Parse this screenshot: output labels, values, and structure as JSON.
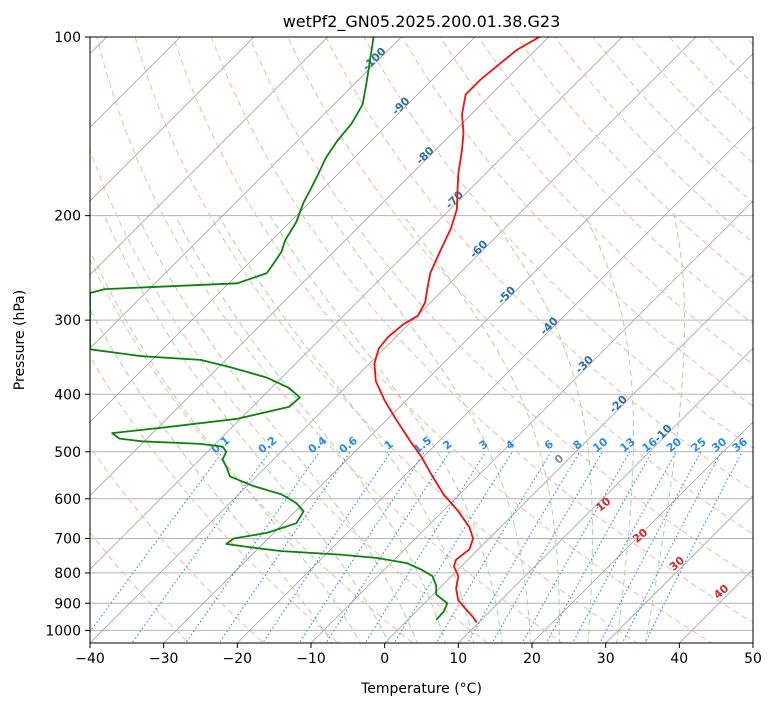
{
  "chart_data": {
    "type": "line",
    "title": "wetPf2_GN05.2025.200.01.38.G23",
    "xlabel": "Temperature (°C)",
    "ylabel": "Pressure (hPa)",
    "xlim": [
      -40,
      50
    ],
    "ylim": [
      1050,
      100
    ],
    "y_scale": "log",
    "x_ticks": [
      "−40",
      "−30",
      "−20",
      "−10",
      "0",
      "10",
      "20",
      "30",
      "40",
      "50"
    ],
    "y_ticks": [
      "100",
      "200",
      "300",
      "400",
      "500",
      "600",
      "700",
      "800",
      "900",
      "1000"
    ],
    "grid": true,
    "series": [
      {
        "role": "temperature",
        "color": "#ee1111",
        "x": [
          12.5,
          12.0,
          11.0,
          10.0,
          9.7,
          10.0,
          9.4,
          9.7,
          11.5,
          12.0,
          11.5,
          10.0,
          8.0,
          6.5,
          5.0,
          3.5,
          2.5,
          1.5,
          0.0,
          -1.2,
          -1.4,
          -0.8,
          0.5,
          2.5,
          4.5,
          5.5,
          5.8,
          6.2,
          7.5,
          9.0,
          9.8,
          9.9,
          10.0,
          10.5,
          10.7,
          10.5,
          11.0,
          13.0,
          16.0,
          18.0,
          21.0
        ],
        "y": [
          970,
          950,
          920,
          890,
          850,
          810,
          780,
          760,
          730,
          700,
          670,
          630,
          590,
          550,
          510,
          480,
          460,
          440,
          410,
          380,
          355,
          335,
          320,
          305,
          295,
          280,
          265,
          250,
          230,
          210,
          195,
          180,
          170,
          155,
          145,
          135,
          125,
          118,
          110,
          105,
          100
        ]
      },
      {
        "role": "dewpoint",
        "color": "#0d800d",
        "x": [
          7.0,
          8.0,
          8.5,
          7.0,
          7.0,
          6.5,
          5.0,
          3.0,
          -1.0,
          -6.0,
          -14.0,
          -18.0,
          -21.5,
          -20.5,
          -16.0,
          -12.0,
          -11.0,
          -12.0,
          -14.0,
          -18.0,
          -21.0,
          -21.5,
          -22.0,
          -21.5,
          -22.0,
          -25.0,
          -33.0,
          -36.0,
          -37.0,
          -30.0,
          -20.0,
          -13.0,
          -11.5,
          -13.0,
          -16.0,
          -21.0,
          -25.0,
          -33.0,
          -40.0,
          -40.0,
          -38.0,
          -32.0,
          -20.0,
          -16.0,
          -15.0,
          -14.0,
          -13.5,
          -12.0,
          -11.0,
          -10.0,
          -9.0,
          -8.0,
          -6.5,
          -4.5,
          -3.0,
          -2.5,
          -1.5
        ],
        "y": [
          960,
          930,
          900,
          870,
          840,
          810,
          790,
          770,
          755,
          745,
          735,
          725,
          715,
          700,
          685,
          660,
          630,
          610,
          590,
          570,
          550,
          530,
          515,
          500,
          490,
          485,
          480,
          475,
          465,
          455,
          440,
          420,
          405,
          390,
          375,
          360,
          350,
          345,
          336,
          270,
          266,
          264,
          260,
          250,
          240,
          230,
          220,
          205,
          190,
          180,
          170,
          160,
          150,
          140,
          130,
          120,
          100
        ]
      }
    ],
    "dry_adiabat_labels": [
      "-100",
      "-90",
      "-80",
      "-70",
      "-60",
      "-50",
      "-40",
      "-30",
      "-20",
      "-10"
    ],
    "mixing_ratio_labels": [
      "0.1",
      "0.2",
      "0.4",
      "0.6",
      "1",
      "1.5",
      "2",
      "3",
      "4",
      "6",
      "8",
      "10",
      "13",
      "16",
      "20",
      "25",
      "30",
      "36"
    ],
    "moist_adiabat_labels": [
      "0",
      "10",
      "20",
      "30",
      "40"
    ]
  },
  "colors": {
    "isotherm": "#a8a8a8",
    "isobar": "#b4b4b4",
    "dry_adiabat": "#f5b8a0",
    "moist_adiabat": "#a9d4a1",
    "mixing_ratio": "#2a8ae6",
    "dry_adiabat_label": "#2a6fa8",
    "mixing_ratio_label": "#2a8ae6",
    "moist_adiabat_label": "#d12a2a",
    "freezing_label": "#888888"
  }
}
